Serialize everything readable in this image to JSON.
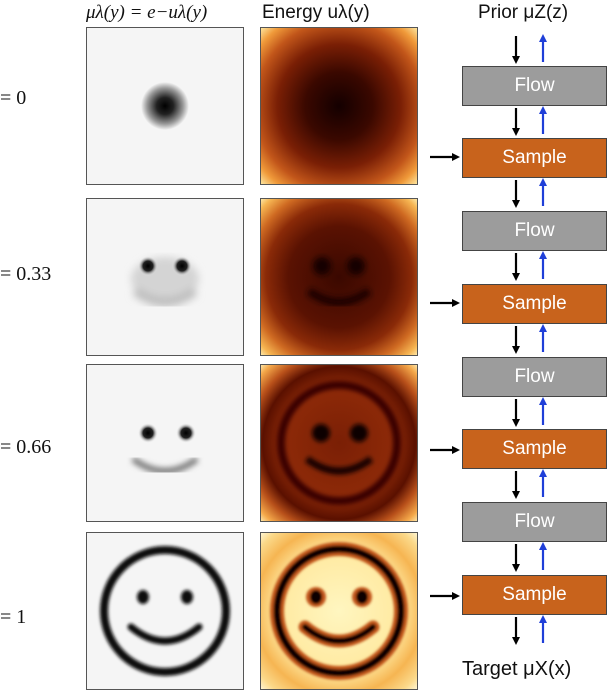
{
  "headers": {
    "density": "μλ(y) = e−uλ(y)",
    "energy": "Energy uλ(y)",
    "prior": "Prior μZ(z)"
  },
  "rows": [
    {
      "label": "= 0"
    },
    {
      "label": "= 0.33"
    },
    {
      "label": "= 0.66"
    },
    {
      "label": "= 1"
    }
  ],
  "pipeline": {
    "flow_label": "Flow",
    "sample_label": "Sample",
    "colors": {
      "flow": "#9c9c9c",
      "sample": "#c8631c",
      "up_arrow": "#1f3fd8",
      "down_arrow": "#000000"
    }
  },
  "footer": {
    "target": "Target μX(x)"
  }
}
